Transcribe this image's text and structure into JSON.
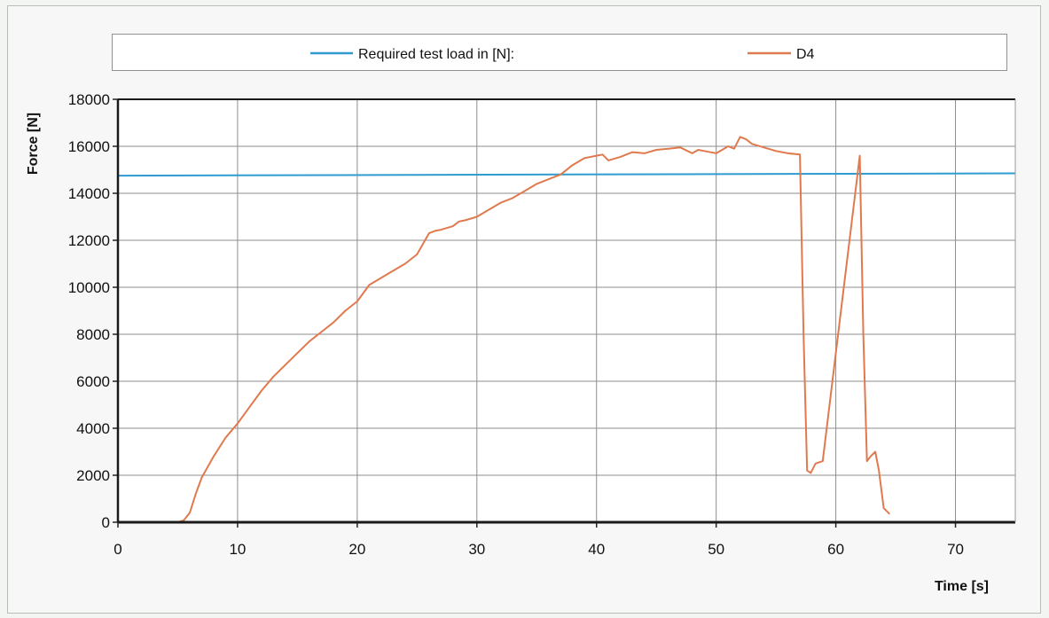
{
  "chart_data": {
    "type": "line",
    "title": "",
    "xlabel": "Time [s]",
    "ylabel": "Force [N]",
    "xlim": [
      0,
      75
    ],
    "ylim": [
      0,
      18000
    ],
    "x_ticks": [
      0,
      10,
      20,
      30,
      40,
      50,
      60,
      70
    ],
    "y_ticks": [
      0,
      2000,
      4000,
      6000,
      8000,
      10000,
      12000,
      14000,
      16000,
      18000
    ],
    "grid": true,
    "legend_position": "top",
    "series": [
      {
        "name": "Required test load in [N]:",
        "color": "#2f9bd0",
        "x": [
          0,
          75
        ],
        "y": [
          14750,
          14850
        ]
      },
      {
        "name": "D4",
        "color": "#e07a4e",
        "x": [
          0,
          5,
          5.5,
          6,
          6.5,
          7,
          8,
          9,
          10,
          11,
          12,
          13,
          14,
          15,
          16,
          17,
          18,
          19,
          20,
          21,
          22,
          23,
          24,
          25,
          26,
          26.5,
          27,
          28,
          28.5,
          29,
          30,
          31,
          32,
          33,
          34,
          35,
          36,
          37,
          38,
          39,
          40,
          40.5,
          41,
          42,
          43,
          44,
          45,
          46,
          47,
          48,
          48.5,
          49,
          50,
          51,
          51.5,
          52,
          52.5,
          53,
          54,
          55,
          56,
          57,
          57.3,
          57.6,
          57.9,
          58.3,
          58.9,
          62,
          62.3,
          62.6,
          62.9,
          63.3,
          63.6,
          64,
          64.5
        ],
        "y": [
          0,
          0,
          80,
          400,
          1200,
          1900,
          2800,
          3600,
          4200,
          4900,
          5600,
          6200,
          6700,
          7200,
          7700,
          8100,
          8500,
          9000,
          9400,
          10100,
          10400,
          10700,
          11000,
          11400,
          12300,
          12400,
          12450,
          12600,
          12800,
          12850,
          13000,
          13300,
          13600,
          13800,
          14100,
          14400,
          14600,
          14800,
          15200,
          15500,
          15600,
          15650,
          15400,
          15550,
          15750,
          15700,
          15850,
          15900,
          15950,
          15700,
          15850,
          15800,
          15700,
          16000,
          15900,
          16400,
          16300,
          16100,
          15950,
          15800,
          15700,
          15650,
          8000,
          2200,
          2100,
          2500,
          2600,
          15600,
          8000,
          2600,
          2800,
          3000,
          2200,
          600,
          350
        ]
      }
    ]
  }
}
